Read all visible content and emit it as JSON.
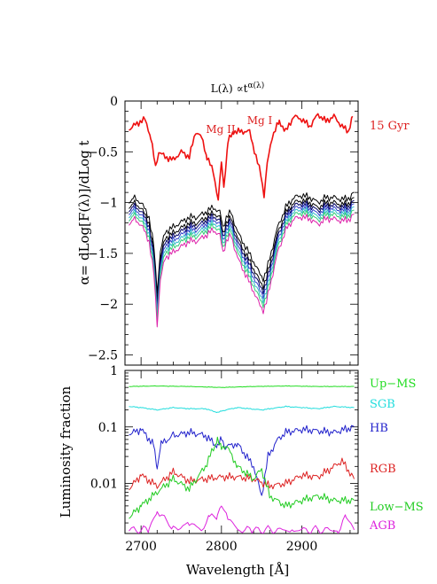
{
  "chart_data": [
    {
      "type": "line",
      "title": "L(λ) ∝t",
      "title_superscript": "α(λ)",
      "ylabel": "α= dLog[F(λ)]/dLog t",
      "xlim": [
        2680,
        2970
      ],
      "ylim": [
        -2.6,
        0
      ],
      "yticks": [
        0,
        -0.5,
        -1,
        -1.5,
        -2,
        -2.5
      ],
      "ytick_labels": [
        "0",
        "−0.5",
        "−1",
        "−1.5",
        "−2",
        "−2.5"
      ],
      "annotations": [
        {
          "text": "Mg II",
          "color": "#dd2222"
        },
        {
          "text": "Mg I",
          "color": "#dd2222"
        },
        {
          "text": "15 Gyr",
          "color": "#dd2222"
        }
      ],
      "series": [
        {
          "label": "15 Gyr",
          "color": "#ee1111",
          "x": [
            2685,
            2695,
            2705,
            2712,
            2718,
            2722,
            2730,
            2740,
            2750,
            2760,
            2768,
            2775,
            2782,
            2790,
            2796,
            2800,
            2803,
            2808,
            2815,
            2825,
            2835,
            2843,
            2849,
            2853,
            2857,
            2863,
            2872,
            2880,
            2890,
            2900,
            2910,
            2920,
            2930,
            2940,
            2950,
            2958,
            2963
          ],
          "y": [
            -0.28,
            -0.22,
            -0.18,
            -0.35,
            -0.65,
            -0.5,
            -0.55,
            -0.58,
            -0.5,
            -0.55,
            -0.3,
            -0.35,
            -0.55,
            -0.7,
            -0.98,
            -0.6,
            -0.85,
            -0.4,
            -0.3,
            -0.3,
            -0.3,
            -0.55,
            -0.72,
            -0.93,
            -0.62,
            -0.35,
            -0.2,
            -0.3,
            -0.15,
            -0.18,
            -0.25,
            -0.13,
            -0.2,
            -0.15,
            -0.25,
            -0.3,
            -0.15
          ]
        }
      ],
      "family_profile": {
        "x": [
          2685,
          2690,
          2700,
          2710,
          2716,
          2720,
          2724,
          2730,
          2740,
          2750,
          2760,
          2770,
          2780,
          2790,
          2798,
          2802,
          2806,
          2812,
          2820,
          2830,
          2840,
          2848,
          2852,
          2856,
          2862,
          2870,
          2880,
          2890,
          2900,
          2910,
          2920,
          2930,
          2940,
          2950,
          2960,
          2965
        ],
        "y": [
          -1.05,
          -1.0,
          -1.05,
          -1.2,
          -1.5,
          -1.95,
          -1.55,
          -1.35,
          -1.3,
          -1.25,
          -1.2,
          -1.2,
          -1.15,
          -1.1,
          -1.15,
          -1.3,
          -1.2,
          -1.15,
          -1.35,
          -1.5,
          -1.65,
          -1.78,
          -1.82,
          -1.75,
          -1.55,
          -1.3,
          -1.1,
          -1.0,
          -0.98,
          -1.0,
          -1.05,
          -1.0,
          -1.0,
          -1.02,
          -1.0,
          -0.95
        ]
      },
      "family": [
        {
          "color": "#000000",
          "offset": 0.05
        },
        {
          "color": "#000000",
          "offset": 0.0
        },
        {
          "color": "#000066",
          "offset": -0.03
        },
        {
          "color": "#3344cc",
          "offset": -0.06
        },
        {
          "color": "#33bbcc",
          "offset": -0.09
        },
        {
          "color": "#33cc77",
          "offset": -0.12
        },
        {
          "color": "#dd22aa",
          "offset": -0.16
        }
      ]
    },
    {
      "type": "line",
      "xlabel": "Wavelength [Å]",
      "ylabel": "Luminosity fraction",
      "xlim": [
        2680,
        2970
      ],
      "ylim": [
        0.0013,
        1.0
      ],
      "yscale": "log",
      "xticks": [
        2700,
        2800,
        2900
      ],
      "yticks": [
        1,
        0.1,
        0.01
      ],
      "ytick_labels": [
        "1",
        "0.1",
        "0.01"
      ],
      "series": [
        {
          "name": "Up−MS",
          "color": "#22dd22",
          "x": [
            2685,
            2720,
            2760,
            2800,
            2840,
            2880,
            2920,
            2965
          ],
          "y": [
            0.52,
            0.53,
            0.52,
            0.5,
            0.52,
            0.53,
            0.52,
            0.52
          ]
        },
        {
          "name": "SGB",
          "color": "#22dddd",
          "x": [
            2685,
            2700,
            2720,
            2740,
            2760,
            2780,
            2795,
            2800,
            2805,
            2820,
            2850,
            2880,
            2900,
            2920,
            2940,
            2965
          ],
          "y": [
            0.23,
            0.22,
            0.2,
            0.22,
            0.21,
            0.21,
            0.18,
            0.19,
            0.2,
            0.22,
            0.2,
            0.23,
            0.22,
            0.21,
            0.23,
            0.22
          ]
        },
        {
          "name": "HB",
          "color": "#2222cc",
          "x": [
            2685,
            2700,
            2715,
            2720,
            2725,
            2740,
            2760,
            2780,
            2795,
            2800,
            2805,
            2820,
            2840,
            2850,
            2858,
            2870,
            2880,
            2900,
            2920,
            2940,
            2965
          ],
          "y": [
            0.075,
            0.09,
            0.05,
            0.02,
            0.05,
            0.07,
            0.08,
            0.07,
            0.045,
            0.06,
            0.045,
            0.05,
            0.02,
            0.006,
            0.03,
            0.06,
            0.08,
            0.09,
            0.085,
            0.08,
            0.1
          ]
        },
        {
          "name": "RGB",
          "color": "#dd2222",
          "x": [
            2685,
            2700,
            2720,
            2740,
            2760,
            2780,
            2800,
            2820,
            2840,
            2860,
            2880,
            2900,
            2920,
            2940,
            2950,
            2965
          ],
          "y": [
            0.008,
            0.014,
            0.009,
            0.016,
            0.011,
            0.012,
            0.013,
            0.013,
            0.012,
            0.009,
            0.01,
            0.014,
            0.013,
            0.02,
            0.025,
            0.012
          ]
        },
        {
          "name": "Low−MS",
          "color": "#22cc22",
          "x": [
            2685,
            2700,
            2720,
            2740,
            2760,
            2780,
            2795,
            2800,
            2805,
            2820,
            2840,
            2850,
            2860,
            2880,
            2900,
            2920,
            2940,
            2965
          ],
          "y": [
            0.0025,
            0.004,
            0.007,
            0.012,
            0.008,
            0.02,
            0.06,
            0.04,
            0.05,
            0.02,
            0.012,
            0.018,
            0.006,
            0.004,
            0.005,
            0.006,
            0.005,
            0.005
          ]
        },
        {
          "name": "AGB",
          "color": "#dd22dd",
          "x": [
            2685,
            2700,
            2710,
            2720,
            2740,
            2760,
            2775,
            2785,
            2795,
            2800,
            2808,
            2820,
            2840,
            2855,
            2870,
            2890,
            2920,
            2945,
            2955,
            2965
          ],
          "y": [
            0.0015,
            0.0015,
            0.0015,
            0.0035,
            0.0015,
            0.002,
            0.0015,
            0.0025,
            0.0025,
            0.004,
            0.0025,
            0.0015,
            0.0015,
            0.0015,
            0.0015,
            0.0015,
            0.0015,
            0.0015,
            0.0025,
            0.0015
          ]
        }
      ]
    }
  ]
}
